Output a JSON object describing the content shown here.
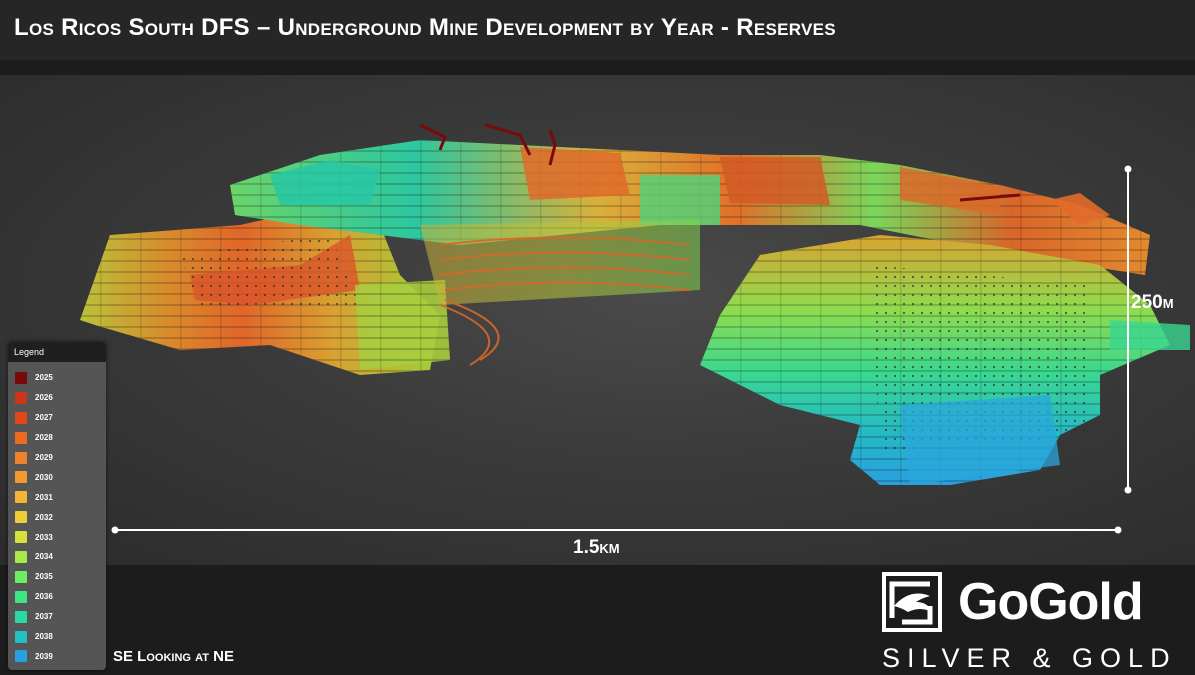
{
  "title": "Los Ricos South DFS – Underground Mine Development by Year - Reserves",
  "scale": {
    "horizontal_label": "1.5km",
    "vertical_label": "250m"
  },
  "legend": {
    "header": "Legend",
    "items": [
      {
        "label": "2025",
        "color": "#7a0a0a"
      },
      {
        "label": "2026",
        "color": "#c9361a"
      },
      {
        "label": "2027",
        "color": "#e2481c"
      },
      {
        "label": "2028",
        "color": "#ec6a22"
      },
      {
        "label": "2029",
        "color": "#f0822c"
      },
      {
        "label": "2030",
        "color": "#f39a31"
      },
      {
        "label": "2031",
        "color": "#f4b537"
      },
      {
        "label": "2032",
        "color": "#eccd3a"
      },
      {
        "label": "2033",
        "color": "#d7e03c"
      },
      {
        "label": "2034",
        "color": "#a8ea48"
      },
      {
        "label": "2035",
        "color": "#6cee62"
      },
      {
        "label": "2036",
        "color": "#3ee783"
      },
      {
        "label": "2037",
        "color": "#2ad9a6"
      },
      {
        "label": "2038",
        "color": "#22c2c4"
      },
      {
        "label": "2039",
        "color": "#2a9fe0"
      }
    ]
  },
  "view_direction": "SE Looking at NE",
  "logo": {
    "brand": "GoGold",
    "tagline": "SILVER & GOLD"
  }
}
